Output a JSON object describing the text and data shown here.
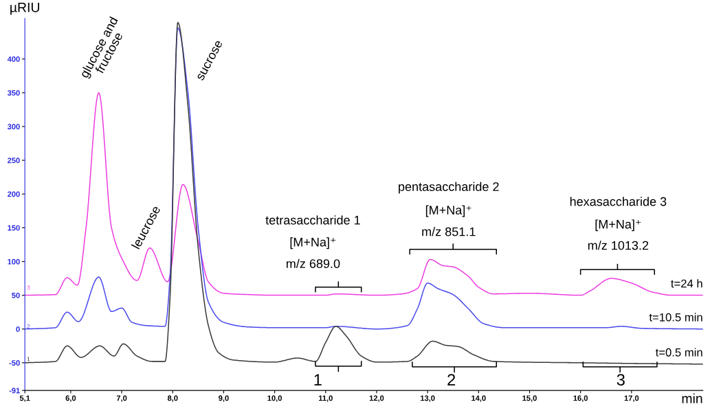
{
  "chart_data": {
    "type": "line",
    "xlabel": "min",
    "ylabel": "µRIU",
    "xlim": [
      5.1,
      18.4
    ],
    "ylim": [
      -91,
      460
    ],
    "xticks": [
      {
        "value": 5.1,
        "label": "5,1"
      },
      {
        "value": 6,
        "label": "6,0"
      },
      {
        "value": 7,
        "label": "7,0"
      },
      {
        "value": 8,
        "label": "8,0"
      },
      {
        "value": 9,
        "label": "9,0"
      },
      {
        "value": 10,
        "label": "10,0"
      },
      {
        "value": 11,
        "label": "11,0"
      },
      {
        "value": 12,
        "label": "12,0"
      },
      {
        "value": 13,
        "label": "13,0"
      },
      {
        "value": 14,
        "label": "14,0"
      },
      {
        "value": 15,
        "label": "15,0"
      },
      {
        "value": 16,
        "label": "16,0"
      },
      {
        "value": 17,
        "label": "17,0"
      }
    ],
    "yticks": [
      -91,
      -50,
      0,
      50,
      100,
      150,
      200,
      250,
      300,
      350,
      400
    ],
    "grid": false,
    "legend": false,
    "marker": "none",
    "line_style": "solid",
    "series": [
      {
        "name": "t=24 h",
        "color": "#ee3ee0",
        "x": [
          5.1,
          5.7,
          5.93,
          6.13,
          6.3,
          6.55,
          6.8,
          7.0,
          7.3,
          7.55,
          7.9,
          8.2,
          8.5,
          8.7,
          9.0,
          9.5,
          10,
          11,
          11.2,
          12,
          12.5,
          12.8,
          13.05,
          13.3,
          13.5,
          13.8,
          14.0,
          14.3,
          15.0,
          16.0,
          16.2,
          16.6,
          17.0,
          17.4,
          17.8,
          18.4
        ],
        "values": [
          50,
          51,
          76,
          65,
          150,
          350,
          150,
          105,
          72,
          120,
          70,
          214,
          130,
          70,
          53,
          51,
          50,
          50,
          52,
          50,
          52,
          60,
          103,
          94,
          92,
          78,
          62,
          52,
          53,
          50,
          57,
          75,
          68,
          55,
          50,
          50
        ]
      },
      {
        "name": "t=10.5 min",
        "color": "#4a4aec",
        "x": [
          5.1,
          5.7,
          5.93,
          6.15,
          6.55,
          6.8,
          7.0,
          7.2,
          7.5,
          7.85,
          7.95,
          8.1,
          8.3,
          8.5,
          8.7,
          9.0,
          9.5,
          10,
          11,
          11.2,
          12,
          12.6,
          12.8,
          13.0,
          13.2,
          13.5,
          13.8,
          14.1,
          14.5,
          16.5,
          16.8,
          17.2,
          18.4
        ],
        "values": [
          0,
          2,
          25,
          11,
          77,
          26,
          31,
          10,
          5,
          4,
          80,
          446,
          350,
          150,
          40,
          10,
          3,
          2,
          2,
          4,
          0,
          5,
          30,
          68,
          60,
          51,
          30,
          8,
          2,
          2,
          4,
          1,
          0
        ]
      },
      {
        "name": "t=0.5 min",
        "color": "#3a3a3a",
        "x": [
          5.1,
          5.7,
          5.93,
          6.2,
          6.57,
          6.85,
          7.03,
          7.3,
          7.6,
          7.85,
          7.95,
          8.1,
          8.3,
          8.5,
          8.7,
          8.9,
          9.2,
          10,
          10.45,
          10.8,
          11.0,
          11.2,
          11.4,
          11.7,
          12.0,
          12.6,
          12.8,
          13.1,
          13.35,
          13.6,
          13.9,
          14.3,
          16.0,
          17.0,
          18.4
        ],
        "values": [
          -50,
          -48,
          -25,
          -42,
          -25,
          -40,
          -22,
          -40,
          -48,
          -48,
          50,
          454,
          330,
          120,
          5,
          -35,
          -46,
          -49,
          -43,
          -48,
          -20,
          4,
          -10,
          -40,
          -49,
          -48,
          -40,
          -18,
          -24,
          -26,
          -38,
          -48,
          -50,
          -51,
          -52
        ]
      }
    ],
    "annotations": [
      "glucose and\nfructose",
      "leucrose",
      "sucrose",
      "tetrasaccharide 1",
      "[M+Na]⁺",
      "m/z 689.0",
      "pentasaccharide 2",
      "[M+Na]⁺",
      "m/z 851.1",
      "hexasaccharide 3",
      "[M+Na]⁺",
      "m/z 1013.2",
      "1",
      "2",
      "3",
      "3",
      "2",
      "1"
    ]
  }
}
